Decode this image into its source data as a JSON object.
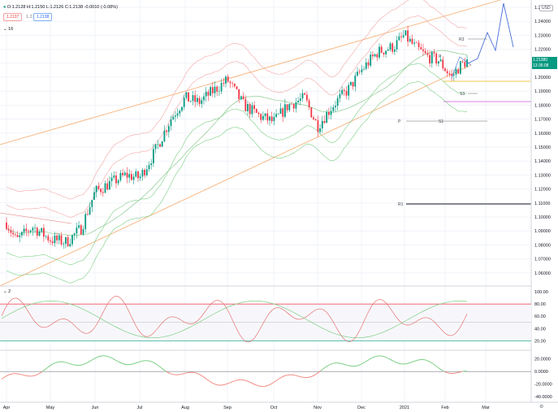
{
  "header": {
    "symbol_icon": "dot-icon",
    "ohlc": "O:1.2128 H:1.2150 L:1.2126 C:1.2138 -0.0010 (-0.08%)",
    "bid": "1.2137",
    "spread": "1.2",
    "ask": "1.2138",
    "price_indicator_label": "16",
    "currency": "USD"
  },
  "price_axis": {
    "ticks": [
      "1.25000",
      "1.24000",
      "1.23000",
      "1.22000",
      "1.21000",
      "1.20000",
      "1.19000",
      "1.18000",
      "1.17000",
      "1.16000",
      "1.15000",
      "1.14000",
      "1.13000",
      "1.12000",
      "1.11000",
      "1.10000",
      "1.09000",
      "1.08000",
      "1.07000",
      "1.06000"
    ],
    "last_price": "1.21380",
    "countdown": "13:36:08"
  },
  "pivot_labels": {
    "r3": "R3",
    "r1": "R1",
    "p_left": "P",
    "s1": "S1",
    "s3": "S3",
    "p": "P"
  },
  "oscillator": {
    "label": "2",
    "ticks": [
      "100.00",
      "80.00",
      "60.00",
      "40.00",
      "20.00"
    ]
  },
  "momentum": {
    "ticks": [
      "20.0000",
      "0.0000",
      "-20.0000",
      "-40.0000"
    ]
  },
  "time_axis": {
    "ticks": [
      "Apr",
      "May",
      "Jun",
      "Jul",
      "Aug",
      "Sep",
      "Oct",
      "Nov",
      "Dec",
      "2021",
      "Feb",
      "Mar"
    ]
  },
  "colors": {
    "up": "#089981",
    "down": "#f23645",
    "channel": "#f7b27a",
    "band": "#f4a6a6",
    "green_band": "#7ccf84",
    "projection": "#4a6fd6",
    "pivot": "#9e9e9e"
  }
}
